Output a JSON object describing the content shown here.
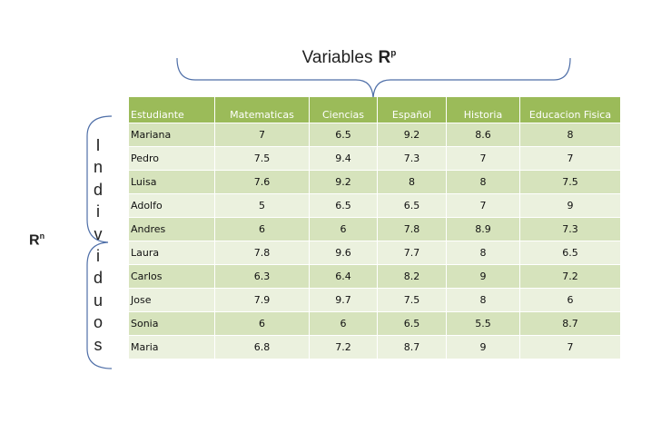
{
  "title": {
    "text": "Variables",
    "symbol": "R",
    "exponent": "p"
  },
  "rows_label": {
    "symbol": "R",
    "exponent": "n"
  },
  "side_label": [
    "I",
    "n",
    "d",
    "i",
    "v",
    "i",
    "d",
    "u",
    "o",
    "s"
  ],
  "table": {
    "headers": [
      "Estudiante",
      "Matematicas",
      "Ciencias",
      "Español",
      "Historia",
      "Educacion Fisica"
    ],
    "rows": [
      [
        "Mariana",
        "7",
        "6.5",
        "9.2",
        "8.6",
        "8"
      ],
      [
        "Pedro",
        "7.5",
        "9.4",
        "7.3",
        "7",
        "7"
      ],
      [
        "Luisa",
        "7.6",
        "9.2",
        "8",
        "8",
        "7.5"
      ],
      [
        "Adolfo",
        "5",
        "6.5",
        "6.5",
        "7",
        "9"
      ],
      [
        "Andres",
        "6",
        "6",
        "7.8",
        "8.9",
        "7.3"
      ],
      [
        "Laura",
        "7.8",
        "9.6",
        "7.7",
        "8",
        "6.5"
      ],
      [
        "Carlos",
        "6.3",
        "6.4",
        "8.2",
        "9",
        "7.2"
      ],
      [
        "Jose",
        "7.9",
        "9.7",
        "7.5",
        "8",
        "6"
      ],
      [
        "Sonia",
        "6",
        "6",
        "6.5",
        "5.5",
        "8.7"
      ],
      [
        "Maria",
        "6.8",
        "7.2",
        "8.7",
        "9",
        "7"
      ]
    ]
  },
  "colors": {
    "header": "#9bbb59",
    "row_odd": "#d6e3bc",
    "row_even": "#ebf1de",
    "brace": "#4f6fa8"
  }
}
